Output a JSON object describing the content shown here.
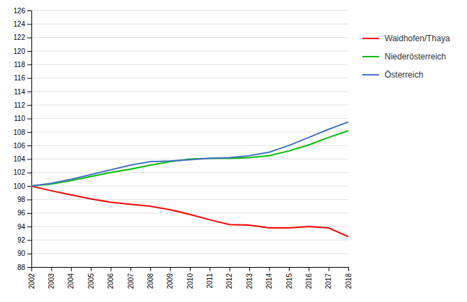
{
  "chart_data": {
    "type": "line",
    "x": [
      2002,
      2003,
      2004,
      2005,
      2006,
      2007,
      2008,
      2009,
      2010,
      2011,
      2012,
      2013,
      2014,
      2015,
      2016,
      2017,
      2018
    ],
    "series": [
      {
        "name": "Waidhofen/Thaya",
        "color": "#ff0000",
        "values": [
          100.0,
          99.3,
          98.7,
          98.1,
          97.6,
          97.3,
          97.0,
          96.5,
          95.8,
          95.0,
          94.3,
          94.2,
          93.8,
          93.8,
          94.0,
          93.8,
          92.5
        ]
      },
      {
        "name": "Niederösterreich",
        "color": "#00bb00",
        "values": [
          100.0,
          100.3,
          100.8,
          101.4,
          102.0,
          102.5,
          103.1,
          103.6,
          104.0,
          104.1,
          104.1,
          104.2,
          104.5,
          105.2,
          106.1,
          107.2,
          108.2
        ]
      },
      {
        "name": "Österreich",
        "color": "#4472c4",
        "values": [
          100.0,
          100.4,
          101.0,
          101.7,
          102.4,
          103.1,
          103.6,
          103.7,
          103.9,
          104.1,
          104.2,
          104.5,
          105.0,
          106.0,
          107.2,
          108.4,
          109.5
        ]
      }
    ],
    "xlim": [
      2002,
      2018
    ],
    "xticks": [
      2002,
      2003,
      2004,
      2005,
      2006,
      2007,
      2008,
      2009,
      2010,
      2011,
      2012,
      2013,
      2014,
      2015,
      2016,
      2017,
      2018
    ],
    "ylim": [
      88,
      126
    ],
    "yticks": [
      88,
      90,
      92,
      94,
      96,
      98,
      100,
      102,
      104,
      106,
      108,
      110,
      112,
      114,
      116,
      118,
      120,
      122,
      124,
      126
    ],
    "grid": true,
    "legend": "right"
  }
}
